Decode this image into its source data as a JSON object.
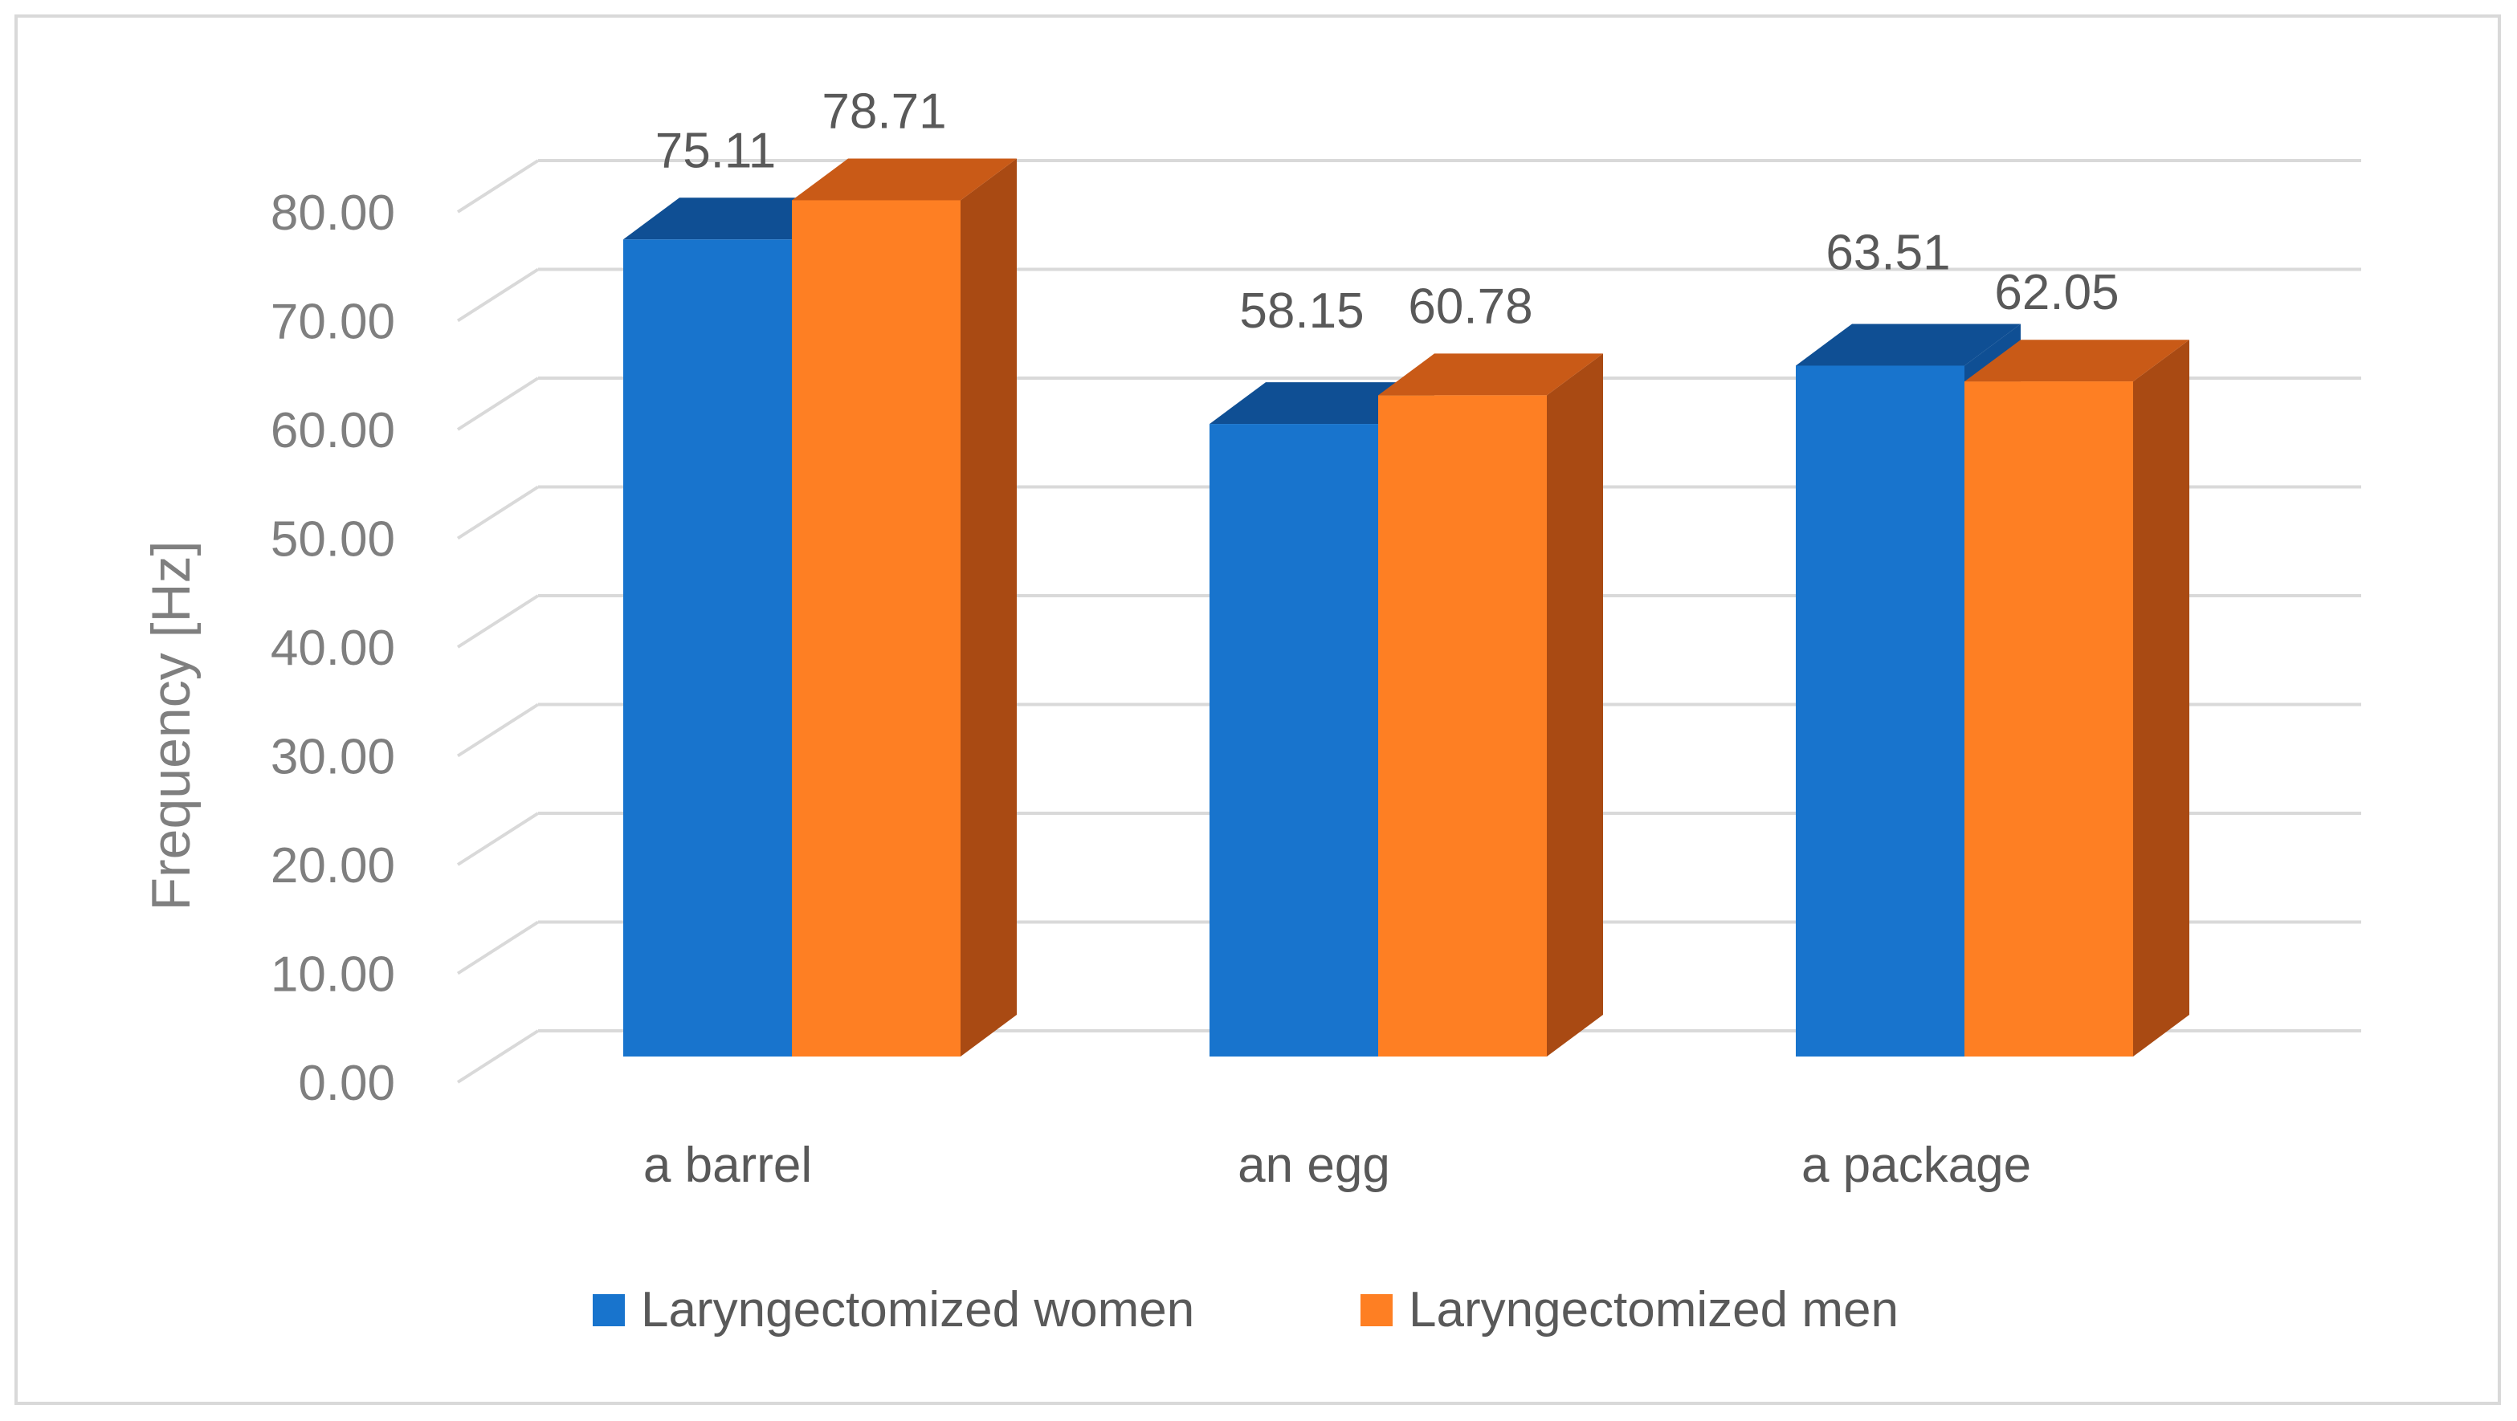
{
  "chart_data": {
    "type": "bar",
    "style": "3d-clustered-column",
    "categories": [
      "a barrel",
      "an egg",
      "a package"
    ],
    "series": [
      {
        "name": "Laryngectomized women",
        "values": [
          75.11,
          58.15,
          63.51
        ],
        "value_labels": [
          "75.11",
          "58.15",
          "63.51"
        ],
        "color": "#1874cd",
        "top_color": "#0f4f94",
        "side_color": "#0f4f94"
      },
      {
        "name": "Laryngectomized men",
        "values": [
          78.71,
          60.78,
          62.05
        ],
        "value_labels": [
          "78.71",
          "60.78",
          "62.05"
        ],
        "color": "#fe7f23",
        "top_color": "#c95a17",
        "side_color": "#a94a13"
      }
    ],
    "ylabel": "Frequency [Hz]",
    "xlabel": "",
    "title": "",
    "ylim": [
      0,
      80
    ],
    "yticks": [
      0,
      10,
      20,
      30,
      40,
      50,
      60,
      70,
      80
    ],
    "ytick_labels": [
      "0.00",
      "10.00",
      "20.00",
      "30.00",
      "40.00",
      "50.00",
      "60.00",
      "70.00",
      "80.00"
    ],
    "grid": true,
    "legend_position": "bottom"
  }
}
